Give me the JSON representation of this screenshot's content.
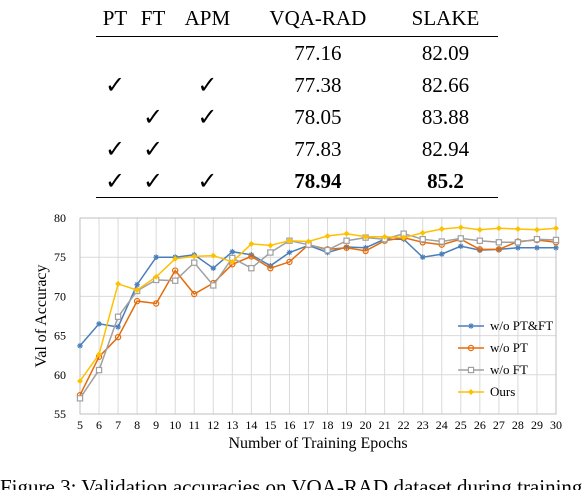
{
  "table": {
    "headers": [
      "PT",
      "FT",
      "APM",
      "VQA-RAD",
      "SLAKE"
    ],
    "rows": [
      {
        "pt": "",
        "ft": "",
        "apm": "",
        "vqa_rad": "77.16",
        "slake": "82.09"
      },
      {
        "pt": "✓",
        "ft": "",
        "apm": "✓",
        "vqa_rad": "77.38",
        "slake": "82.66"
      },
      {
        "pt": "",
        "ft": "✓",
        "apm": "✓",
        "vqa_rad": "78.05",
        "slake": "83.88"
      },
      {
        "pt": "✓",
        "ft": "✓",
        "apm": "",
        "vqa_rad": "77.83",
        "slake": "82.94"
      },
      {
        "pt": "✓",
        "ft": "✓",
        "apm": "✓",
        "vqa_rad": "78.94",
        "slake": "85.2"
      }
    ]
  },
  "chart_data": {
    "type": "line",
    "title": "",
    "xlabel": "Number of Training Epochs",
    "ylabel": "Val of Accuracy",
    "x": [
      5,
      6,
      7,
      8,
      9,
      10,
      11,
      12,
      13,
      14,
      15,
      16,
      17,
      18,
      19,
      20,
      21,
      22,
      23,
      24,
      25,
      26,
      27,
      28,
      29,
      30
    ],
    "xlim": [
      5,
      30
    ],
    "ylim": [
      55,
      80
    ],
    "yticks": [
      55,
      60,
      65,
      70,
      75,
      80
    ],
    "grid": true,
    "legend_position": "bottom-right",
    "series": [
      {
        "name": "w/o PT&FT",
        "color": "#4a7ebb",
        "marker": "star",
        "values": [
          63.7,
          66.5,
          66.1,
          71.5,
          75.0,
          75.0,
          75.3,
          73.6,
          75.7,
          75.3,
          73.9,
          75.6,
          76.5,
          75.6,
          76.3,
          76.2,
          77.3,
          77.3,
          75.0,
          75.4,
          76.4,
          75.9,
          76.0,
          76.2,
          76.2,
          76.2
        ]
      },
      {
        "name": "w/o PT",
        "color": "#e46c0a",
        "marker": "circle",
        "values": [
          57.4,
          62.3,
          64.8,
          69.4,
          69.1,
          73.3,
          70.3,
          71.7,
          74.1,
          75.1,
          73.6,
          74.4,
          76.6,
          76.0,
          76.2,
          75.8,
          77.1,
          77.5,
          76.9,
          76.6,
          77.3,
          76.0,
          76.0,
          77.0,
          77.2,
          76.9
        ]
      },
      {
        "name": "w/o FT",
        "color": "#a0a0a0",
        "marker": "square",
        "values": [
          57.0,
          60.6,
          67.4,
          70.7,
          72.1,
          72.0,
          74.3,
          71.4,
          74.9,
          73.6,
          75.6,
          77.1,
          76.6,
          75.9,
          77.1,
          77.5,
          77.3,
          78.0,
          77.3,
          77.0,
          77.4,
          77.1,
          76.9,
          76.9,
          77.3,
          77.2
        ]
      },
      {
        "name": "Ours",
        "color": "#ffc000",
        "marker": "diamond",
        "values": [
          59.2,
          62.6,
          71.6,
          70.8,
          72.5,
          74.8,
          75.1,
          75.2,
          74.4,
          76.7,
          76.5,
          77.1,
          77.0,
          77.7,
          78.0,
          77.6,
          77.6,
          77.5,
          78.1,
          78.6,
          78.8,
          78.5,
          78.7,
          78.6,
          78.5,
          78.7
        ]
      }
    ]
  },
  "caption": "Figure 3: Validation accuracies on VQA-RAD dataset during training."
}
